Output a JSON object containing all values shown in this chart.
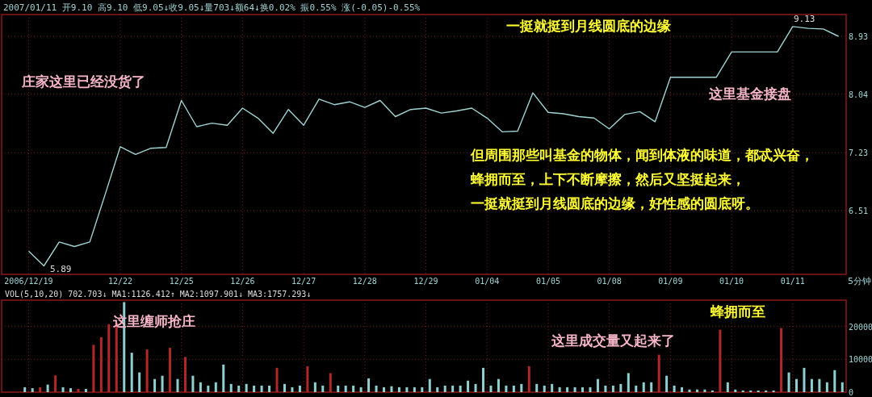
{
  "chart_data": [
    {
      "type": "line",
      "log": "y",
      "color": "#9fd3d3",
      "grid": true,
      "categories": [
        "2006/12/19",
        null,
        null,
        null,
        null,
        null,
        "12/22",
        null,
        null,
        null,
        "12/25",
        null,
        null,
        null,
        "12/26",
        null,
        null,
        null,
        "12/27",
        null,
        null,
        null,
        "12/28",
        null,
        null,
        null,
        "12/29",
        null,
        null,
        null,
        "01/04",
        null,
        null,
        null,
        "01/05",
        null,
        null,
        null,
        "01/08",
        null,
        null,
        null,
        "01/09",
        null,
        null,
        null,
        "01/10",
        null,
        null,
        null,
        "01/11",
        null,
        null,
        null
      ],
      "values": [
        6.05,
        5.89,
        6.15,
        6.1,
        6.15,
        6.7,
        7.31,
        7.21,
        7.29,
        7.3,
        7.95,
        7.58,
        7.63,
        7.6,
        7.84,
        7.7,
        7.49,
        7.82,
        7.6,
        7.97,
        7.89,
        7.93,
        7.85,
        7.95,
        7.72,
        7.82,
        7.84,
        7.77,
        7.8,
        7.84,
        7.7,
        7.51,
        7.52,
        8.06,
        7.78,
        7.76,
        7.72,
        7.7,
        7.55,
        7.75,
        7.79,
        7.65,
        8.29,
        8.29,
        8.29,
        8.29,
        8.68,
        8.68,
        8.68,
        8.68,
        9.09,
        9.06,
        9.05,
        8.93
      ],
      "ylim": [
        5.8,
        9.29
      ],
      "yticks": [
        6.51,
        7.23,
        8.04,
        8.93
      ],
      "annotations": [
        "2007/01/11 开9.10 高9.10 低9.05↓收9.05↓量703↓额64↓换0.02% 振0.55% 涨(-0.05)-0.55%",
        "一挺就挺到月线圆底的边缘",
        "庄家这里已经没货了",
        "这里基金接盘",
        "但周围那些叫基金的物体，闻到体液的味道，都忒兴奋，",
        "蜂拥而至，上下不断摩擦，然后又坚挺起来，",
        "一挺就挺到月线圆底的边缘，好性感的圆底呀。",
        "9.13",
        "5.89",
        "5分钟"
      ]
    },
    {
      "type": "bar",
      "title": "VOL(5,10,20) 702.703↓ MA1:1126.412↑ MA2:1097.901↓ MA3:1757.293↓",
      "grid": true,
      "tick_labels": "y",
      "categories": [
        null,
        null,
        null,
        null,
        null,
        null,
        null,
        null,
        null,
        null,
        null,
        null,
        null,
        null,
        null,
        null,
        null,
        null,
        null,
        null,
        null,
        null,
        null,
        null,
        null,
        null,
        null,
        null,
        null,
        null,
        null,
        null,
        null,
        null,
        null,
        null,
        null,
        null,
        null,
        null,
        null,
        null,
        null,
        null,
        null,
        null,
        null,
        null,
        null,
        null,
        null,
        null,
        null,
        null,
        null,
        null,
        null,
        null,
        null,
        null,
        null,
        null,
        null,
        null,
        null,
        null,
        null,
        null,
        null,
        null,
        null,
        null,
        null,
        null,
        null,
        null,
        null,
        null,
        null,
        null,
        null,
        null,
        null,
        null,
        null,
        null,
        null,
        null,
        null,
        null,
        null,
        null,
        null,
        null,
        null,
        null,
        null,
        null,
        null,
        null,
        null,
        null,
        null,
        null,
        null,
        null,
        null,
        null
      ],
      "values": [
        1500,
        1200,
        1500,
        2300,
        5100,
        1500,
        1200,
        1000,
        1000,
        14400,
        16700,
        20700,
        21200,
        27400,
        12000,
        6000,
        13000,
        4000,
        5000,
        13500,
        4000,
        10700,
        5000,
        3000,
        2000,
        3000,
        8400,
        2500,
        2000,
        2500,
        2000,
        2000,
        2000,
        7400,
        2500,
        1500,
        2000,
        7900,
        3000,
        2000,
        5800,
        2000,
        2000,
        2000,
        1500,
        4200,
        2000,
        1500,
        1800,
        1500,
        1500,
        1500,
        1500,
        4000,
        1500,
        2000,
        2000,
        2000,
        3500,
        2500,
        7400,
        2000,
        4000,
        2000,
        2000,
        2500,
        7900,
        2500,
        2000,
        2500,
        1500,
        1500,
        1500,
        1500,
        1500,
        4000,
        2000,
        2000,
        2500,
        5800,
        2000,
        3000,
        3000,
        11400,
        5000,
        2000,
        1500,
        800,
        800,
        800,
        500,
        19000,
        3000,
        800,
        500,
        500,
        500,
        500,
        500,
        19500,
        6000,
        4000,
        7400,
        4000,
        4000,
        3000,
        6700,
        3000
      ],
      "colors": [
        "#8fcfcf",
        "#8fcfcf",
        "#b02828",
        "#8fcfcf",
        "#b02828",
        "#8fcfcf",
        "#8fcfcf",
        "#b02828",
        "#8fcfcf",
        "#b02828",
        "#b02828",
        "#b02828",
        "#b02828",
        "#8fcfcf",
        "#8fcfcf",
        "#8fcfcf",
        "#b02828",
        "#8fcfcf",
        "#8fcfcf",
        "#b02828",
        "#8fcfcf",
        "#b02828",
        "#8fcfcf",
        "#8fcfcf",
        "#8fcfcf",
        "#8fcfcf",
        "#8fcfcf",
        "#8fcfcf",
        "#8fcfcf",
        "#8fcfcf",
        "#8fcfcf",
        "#8fcfcf",
        "#8fcfcf",
        "#b02828",
        "#8fcfcf",
        "#8fcfcf",
        "#8fcfcf",
        "#b02828",
        "#8fcfcf",
        "#8fcfcf",
        "#b02828",
        "#8fcfcf",
        "#8fcfcf",
        "#8fcfcf",
        "#8fcfcf",
        "#8fcfcf",
        "#8fcfcf",
        "#8fcfcf",
        "#8fcfcf",
        "#8fcfcf",
        "#8fcfcf",
        "#8fcfcf",
        "#8fcfcf",
        "#8fcfcf",
        "#8fcfcf",
        "#8fcfcf",
        "#8fcfcf",
        "#8fcfcf",
        "#8fcfcf",
        "#8fcfcf",
        "#8fcfcf",
        "#8fcfcf",
        "#8fcfcf",
        "#8fcfcf",
        "#8fcfcf",
        "#8fcfcf",
        "#b02828",
        "#8fcfcf",
        "#8fcfcf",
        "#8fcfcf",
        "#8fcfcf",
        "#8fcfcf",
        "#8fcfcf",
        "#8fcfcf",
        "#8fcfcf",
        "#8fcfcf",
        "#8fcfcf",
        "#8fcfcf",
        "#8fcfcf",
        "#8fcfcf",
        "#8fcfcf",
        "#8fcfcf",
        "#8fcfcf",
        "#b02828",
        "#8fcfcf",
        "#8fcfcf",
        "#8fcfcf",
        "#8fcfcf",
        "#8fcfcf",
        "#8fcfcf",
        "#8fcfcf",
        "#b02828",
        "#8fcfcf",
        "#8fcfcf",
        "#8fcfcf",
        "#8fcfcf",
        "#8fcfcf",
        "#8fcfcf",
        "#8fcfcf",
        "#b02828",
        "#8fcfcf",
        "#8fcfcf",
        "#8fcfcf",
        "#8fcfcf",
        "#8fcfcf",
        "#8fcfcf",
        "#8fcfcf",
        "#8fcfcf"
      ],
      "ylim": [
        0,
        28000
      ],
      "yticks": [
        0,
        10000,
        20000
      ],
      "annotations": [
        "这里缠师抢庄",
        "蜂拥而至",
        "这里成交量又起来了"
      ]
    }
  ]
}
